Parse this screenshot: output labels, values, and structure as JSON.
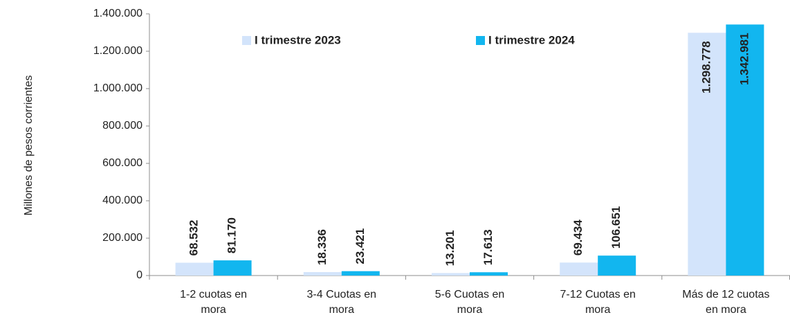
{
  "chart_data": {
    "type": "bar",
    "y_label": "Millones de pesos corrientes",
    "categories": [
      "1-2 cuotas en mora",
      "3-4 Cuotas en mora",
      "5-6 Cuotas en mora",
      "7-12 Cuotas en mora",
      "Más de 12 cuotas en mora"
    ],
    "series": [
      {
        "name": "I trimestre 2023",
        "color": "#d3e4fb",
        "values": [
          68532,
          18336,
          13201,
          69434,
          1298778
        ],
        "value_labels": [
          "68.532",
          "18.336",
          "13.201",
          "69.434",
          "1.298.778"
        ]
      },
      {
        "name": "I trimestre 2024",
        "color": "#12b6ef",
        "values": [
          81170,
          23421,
          17613,
          106651,
          1342981
        ],
        "value_labels": [
          "81.170",
          "23.421",
          "17.613",
          "106.651",
          "1.342.981"
        ]
      }
    ],
    "ylim": [
      0,
      1400000
    ],
    "yticks": [
      0,
      {
        "value": 200000,
        "label": "200.000"
      },
      {
        "value": 400000,
        "label": "400.000"
      },
      {
        "value": 600000,
        "label": "600.000"
      },
      {
        "value": 800000,
        "label": "800.000"
      },
      {
        "value": 1000000,
        "label": "1.000.000"
      },
      {
        "value": 1200000,
        "label": "1.200.000"
      },
      {
        "value": 1400000,
        "label": "1.400.000"
      }
    ],
    "legend": "top"
  }
}
